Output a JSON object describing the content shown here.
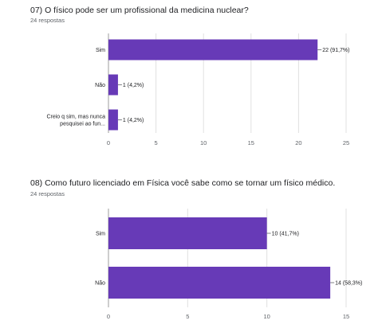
{
  "questions": [
    {
      "title": "07) O físico pode ser um profissional da medicina nuclear?",
      "subtitle": "24 respostas"
    },
    {
      "title": "08) Como futuro licenciado em Física você sabe como se tornar um físico médico.",
      "subtitle": "24 respostas"
    }
  ],
  "colors": {
    "bar": "#673ab7",
    "grid": "#e0e0e0",
    "axis": "#9e9e9e"
  },
  "chart_data": [
    {
      "type": "bar",
      "orientation": "horizontal",
      "categories": [
        [
          "Sim"
        ],
        [
          "Não"
        ],
        [
          "Creio q sim, mas nunca",
          "pesquisei ao fun..."
        ]
      ],
      "values": [
        22,
        1,
        1
      ],
      "data_labels": [
        "22 (91,7%)",
        "1 (4,2%)",
        "1 (4,2%)"
      ],
      "xlim": [
        0,
        25
      ],
      "xticks": [
        "0",
        "5",
        "10",
        "15",
        "20",
        "25"
      ],
      "grid": true
    },
    {
      "type": "bar",
      "orientation": "horizontal",
      "categories": [
        [
          "Sim"
        ],
        [
          "Não"
        ]
      ],
      "values": [
        10,
        14
      ],
      "data_labels": [
        "10 (41,7%)",
        "14 (58,3%)"
      ],
      "xlim": [
        0,
        15
      ],
      "xticks": [
        "0",
        "5",
        "10",
        "15"
      ],
      "grid": true
    }
  ]
}
